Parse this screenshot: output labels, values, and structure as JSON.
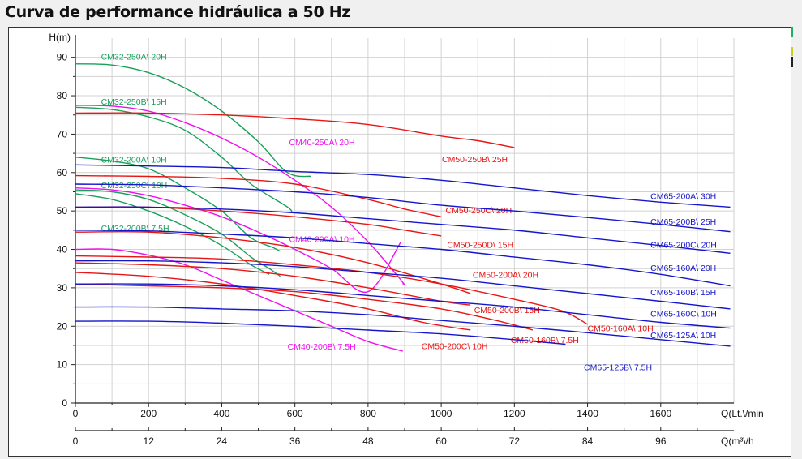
{
  "title": "Curva de performance hidráulica a 50 Hz",
  "legend_swatches": [
    "#1db35a",
    "#c8d21e",
    "#222222"
  ],
  "chart_data": {
    "type": "line",
    "title": "Curva de performance hidráulica a 50 Hz",
    "ylabel": "H(m)",
    "xlabel": "Q(Lt.\\/min",
    "xlabel2": "Q(m³\\/h",
    "xlim": [
      0,
      1800
    ],
    "ylim": [
      0,
      95
    ],
    "xticks": [
      "0",
      "200",
      "400",
      "600",
      "800",
      "1000",
      "1200",
      "1400",
      "1600"
    ],
    "xticks2": [
      "0",
      "12",
      "24",
      "36",
      "48",
      "60",
      "72",
      "84",
      "96"
    ],
    "yticks": [
      "0",
      "10",
      "20",
      "30",
      "40",
      "50",
      "60",
      "70",
      "80",
      "90"
    ],
    "grid": true,
    "series": [
      {
        "name": "CM32-250A\\ 20H",
        "color": "#1aa05c",
        "label_at": [
          70,
          90.3
        ],
        "points": [
          [
            0,
            88.3
          ],
          [
            100,
            88
          ],
          [
            200,
            86
          ],
          [
            300,
            82
          ],
          [
            400,
            76
          ],
          [
            500,
            68
          ],
          [
            580,
            60
          ],
          [
            645,
            59
          ]
        ]
      },
      {
        "name": "CM32-250B\\ 15H",
        "color": "#1aa05c",
        "label_at": [
          70,
          78.5
        ],
        "points": [
          [
            0,
            77
          ],
          [
            100,
            76.4
          ],
          [
            200,
            74.5
          ],
          [
            300,
            71
          ],
          [
            400,
            64
          ],
          [
            480,
            57
          ],
          [
            580,
            51
          ],
          [
            590,
            49.5
          ]
        ]
      },
      {
        "name": "CM32-200A\\ 10H",
        "color": "#1aa05c",
        "label_at": [
          70,
          63.4
        ],
        "points": [
          [
            0,
            64
          ],
          [
            100,
            63
          ],
          [
            200,
            61
          ],
          [
            300,
            56
          ],
          [
            400,
            50
          ],
          [
            480,
            43
          ],
          [
            540,
            40.5
          ],
          [
            560,
            39.5
          ]
        ]
      },
      {
        "name": "CM32-250C\\ 10H",
        "color": "#1aa05c",
        "label_at": [
          70,
          56.8
        ],
        "points": [
          [
            0,
            55.5
          ],
          [
            100,
            55
          ],
          [
            200,
            53
          ],
          [
            300,
            49
          ],
          [
            400,
            44
          ],
          [
            480,
            38
          ],
          [
            530,
            35
          ],
          [
            560,
            33
          ]
        ]
      },
      {
        "name": "CM32-200B\\ 7.5H",
        "color": "#1aa05c",
        "label_at": [
          70,
          45.6
        ],
        "points": [
          [
            0,
            54.5
          ],
          [
            100,
            53
          ],
          [
            200,
            50
          ],
          [
            300,
            46
          ],
          [
            400,
            41
          ],
          [
            480,
            36
          ],
          [
            530,
            33.5
          ]
        ]
      },
      {
        "name": "CM40-250A\\ 20H",
        "color": "#ee10ee",
        "label_at": [
          584,
          68
        ],
        "points": [
          [
            0,
            77.5
          ],
          [
            100,
            77.3
          ],
          [
            200,
            76
          ],
          [
            300,
            73
          ],
          [
            400,
            69
          ],
          [
            500,
            64
          ],
          [
            600,
            58
          ],
          [
            700,
            51
          ],
          [
            800,
            42
          ],
          [
            890,
            32
          ],
          [
            895,
            31
          ]
        ]
      },
      {
        "name": "CM40-200A\\ 10H",
        "color": "#ee10ee",
        "label_at": [
          584,
          42.7
        ],
        "points": [
          [
            0,
            56
          ],
          [
            100,
            55.5
          ],
          [
            200,
            54
          ],
          [
            300,
            51.5
          ],
          [
            400,
            48.5
          ],
          [
            500,
            44.5
          ],
          [
            600,
            40
          ],
          [
            700,
            35
          ],
          [
            800,
            29
          ],
          [
            890,
            42
          ]
        ]
      },
      {
        "name": "CM40-200B\\ 7.5H",
        "color": "#ee10ee",
        "label_at": [
          580,
          14.8
        ],
        "points": [
          [
            0,
            40
          ],
          [
            100,
            40
          ],
          [
            200,
            38.5
          ],
          [
            300,
            36
          ],
          [
            400,
            32
          ],
          [
            500,
            28
          ],
          [
            600,
            24
          ],
          [
            700,
            20
          ],
          [
            800,
            16
          ],
          [
            895,
            13.5
          ]
        ]
      },
      {
        "name": "CM50-250B\\ 25H",
        "color": "#e81515",
        "label_at": [
          1002,
          63.5
        ],
        "points": [
          [
            0,
            75.5
          ],
          [
            200,
            75.5
          ],
          [
            400,
            75
          ],
          [
            600,
            74
          ],
          [
            800,
            72.5
          ],
          [
            1000,
            69.5
          ],
          [
            1100,
            68.3
          ],
          [
            1200,
            66.5
          ]
        ]
      },
      {
        "name": "CM50-250C\\ 20H",
        "color": "#e81515",
        "label_at": [
          1012,
          50.2
        ],
        "points": [
          [
            0,
            59.2
          ],
          [
            200,
            59
          ],
          [
            400,
            58.5
          ],
          [
            600,
            57
          ],
          [
            800,
            53
          ],
          [
            900,
            50.5
          ],
          [
            1000,
            48.5
          ]
        ]
      },
      {
        "name": "CM50-250D\\ 15H",
        "color": "#e81515",
        "label_at": [
          1016,
          41.3
        ],
        "points": [
          [
            0,
            51
          ],
          [
            200,
            51
          ],
          [
            400,
            50
          ],
          [
            600,
            48.5
          ],
          [
            800,
            46.5
          ],
          [
            900,
            45
          ],
          [
            1000,
            43.5
          ]
        ]
      },
      {
        "name": "CM50-200A\\ 20H",
        "color": "#e81515",
        "label_at": [
          1086,
          33.5
        ],
        "points": [
          [
            0,
            44.5
          ],
          [
            200,
            44.5
          ],
          [
            400,
            43
          ],
          [
            600,
            40.5
          ],
          [
            800,
            36.5
          ],
          [
            1000,
            31
          ],
          [
            1080,
            28.5
          ]
        ]
      },
      {
        "name": "CM50-200B\\ 15H",
        "color": "#e81515",
        "label_at": [
          1090,
          24.3
        ],
        "points": [
          [
            0,
            36.5
          ],
          [
            200,
            36
          ],
          [
            400,
            35
          ],
          [
            600,
            33
          ],
          [
            800,
            30
          ],
          [
            1000,
            26.5
          ],
          [
            1080,
            25.5
          ]
        ]
      },
      {
        "name": "CM50-200C\\ 10H",
        "color": "#e81515",
        "label_at": [
          946,
          14.9
        ],
        "points": [
          [
            0,
            34
          ],
          [
            200,
            33
          ],
          [
            400,
            31
          ],
          [
            600,
            28
          ],
          [
            800,
            24.5
          ],
          [
            950,
            21
          ],
          [
            1080,
            19
          ]
        ]
      },
      {
        "name": "CM50-160A\\ 10H",
        "color": "#e81515",
        "label_at": [
          1400,
          19.5
        ],
        "points": [
          [
            0,
            38.3
          ],
          [
            200,
            38
          ],
          [
            400,
            37.5
          ],
          [
            600,
            36
          ],
          [
            800,
            34
          ],
          [
            1000,
            31
          ],
          [
            1200,
            27
          ],
          [
            1330,
            24
          ],
          [
            1400,
            20.5
          ]
        ]
      },
      {
        "name": "CM50-160B\\ 7.5H",
        "color": "#e81515",
        "label_at": [
          1190,
          16.5
        ],
        "points": [
          [
            0,
            31
          ],
          [
            200,
            30.5
          ],
          [
            400,
            30
          ],
          [
            600,
            29
          ],
          [
            800,
            27
          ],
          [
            1000,
            24.5
          ],
          [
            1150,
            21.5
          ],
          [
            1250,
            19
          ]
        ]
      },
      {
        "name": "CM65-200A\\ 30H",
        "color": "#1515cc",
        "label_at": [
          1572,
          53.9
        ],
        "points": [
          [
            0,
            62
          ],
          [
            200,
            61.7
          ],
          [
            400,
            61.3
          ],
          [
            600,
            60.3
          ],
          [
            800,
            59.5
          ],
          [
            1000,
            58
          ],
          [
            1200,
            56
          ],
          [
            1400,
            54
          ],
          [
            1600,
            52.3
          ],
          [
            1790,
            51
          ]
        ]
      },
      {
        "name": "CM65-200B\\ 25H",
        "color": "#1515cc",
        "label_at": [
          1572,
          47.3
        ],
        "points": [
          [
            0,
            57
          ],
          [
            200,
            56.8
          ],
          [
            400,
            56
          ],
          [
            600,
            55
          ],
          [
            800,
            53.5
          ],
          [
            1000,
            51.5
          ],
          [
            1200,
            50
          ],
          [
            1400,
            48.3
          ],
          [
            1600,
            46.5
          ],
          [
            1790,
            44.6
          ]
        ]
      },
      {
        "name": "CM65-200C\\ 20H",
        "color": "#1515cc",
        "label_at": [
          1572,
          41.3
        ],
        "points": [
          [
            0,
            51
          ],
          [
            200,
            51
          ],
          [
            400,
            50.5
          ],
          [
            600,
            49.5
          ],
          [
            800,
            48
          ],
          [
            1000,
            46.5
          ],
          [
            1200,
            45
          ],
          [
            1400,
            43
          ],
          [
            1600,
            41
          ],
          [
            1790,
            39
          ]
        ]
      },
      {
        "name": "CM65-160A\\ 20H",
        "color": "#1515cc",
        "label_at": [
          1572,
          35.3
        ],
        "points": [
          [
            0,
            45
          ],
          [
            200,
            44.8
          ],
          [
            400,
            44
          ],
          [
            600,
            43
          ],
          [
            800,
            41.5
          ],
          [
            1000,
            40
          ],
          [
            1200,
            38
          ],
          [
            1400,
            36
          ],
          [
            1600,
            33.5
          ],
          [
            1790,
            30.5
          ]
        ]
      },
      {
        "name": "CM65-160B\\ 15H",
        "color": "#1515cc",
        "label_at": [
          1572,
          28.9
        ],
        "points": [
          [
            0,
            37
          ],
          [
            200,
            37
          ],
          [
            400,
            36.5
          ],
          [
            600,
            35.5
          ],
          [
            800,
            34
          ],
          [
            1000,
            32.5
          ],
          [
            1200,
            30.5
          ],
          [
            1400,
            28.5
          ],
          [
            1600,
            26.5
          ],
          [
            1790,
            24.5
          ]
        ]
      },
      {
        "name": "CM65-160C\\ 10H",
        "color": "#1515cc",
        "label_at": [
          1572,
          23.3
        ],
        "points": [
          [
            0,
            31
          ],
          [
            200,
            31
          ],
          [
            400,
            30.5
          ],
          [
            600,
            29.5
          ],
          [
            800,
            28
          ],
          [
            1000,
            26.5
          ],
          [
            1200,
            25
          ],
          [
            1400,
            23
          ],
          [
            1600,
            21
          ],
          [
            1790,
            19.5
          ]
        ]
      },
      {
        "name": "CM65-125A\\ 10H",
        "color": "#1515cc",
        "label_at": [
          1572,
          17.7
        ],
        "points": [
          [
            0,
            25
          ],
          [
            200,
            25
          ],
          [
            400,
            24.5
          ],
          [
            600,
            24
          ],
          [
            800,
            23
          ],
          [
            1000,
            21.5
          ],
          [
            1200,
            20
          ],
          [
            1400,
            18.3
          ],
          [
            1600,
            16.5
          ],
          [
            1790,
            14.8
          ]
        ]
      },
      {
        "name": "CM65-125B\\ 7.5H",
        "color": "#1515cc",
        "label_at": [
          1390,
          9.4
        ],
        "points": [
          [
            0,
            21.3
          ],
          [
            200,
            21.3
          ],
          [
            400,
            20.8
          ],
          [
            600,
            20
          ],
          [
            800,
            19
          ],
          [
            1000,
            18
          ],
          [
            1200,
            16.5
          ],
          [
            1340,
            15.3
          ]
        ]
      }
    ]
  }
}
